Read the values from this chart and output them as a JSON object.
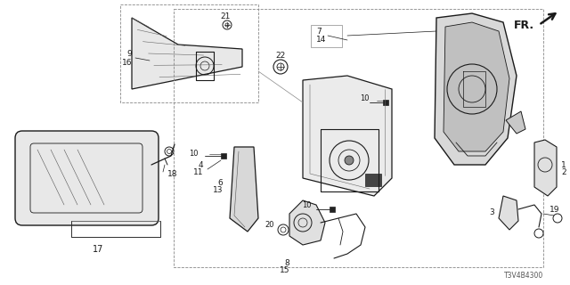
{
  "bg_color": "#ffffff",
  "fig_width": 6.4,
  "fig_height": 3.2,
  "dpi": 100,
  "diagram_code": "T3V4B4300",
  "fr_label": "FR.",
  "line_color": "#1a1a1a",
  "gray_color": "#888888",
  "light_gray": "#cccccc"
}
